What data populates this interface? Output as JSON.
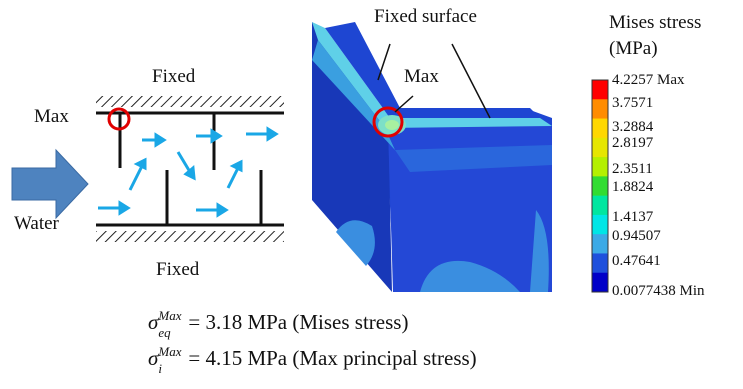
{
  "schematic": {
    "label_fixed_top": "Fixed",
    "label_fixed_bottom": "Fixed",
    "label_max": "Max",
    "label_water": "Water"
  },
  "model": {
    "label_fixed_surface": "Fixed surface",
    "label_max": "Max"
  },
  "legend": {
    "title_line1": "Mises stress",
    "title_line2": "(MPa)",
    "ticks": [
      "4.2257",
      "3.7571",
      "3.2884",
      "2.8197",
      "2.3511",
      "1.8824",
      "1.4137",
      "0.94507",
      "0.47641",
      "0.0077438"
    ],
    "max_label": "Max",
    "min_label": "Min",
    "colors": [
      "#ff0000",
      "#ff8c00",
      "#ffd700",
      "#e6e600",
      "#b4f000",
      "#32dc32",
      "#00e6a0",
      "#00e6e6",
      "#3caae6",
      "#1e50dc",
      "#0000c8"
    ]
  },
  "equations": {
    "eq1_symbol": "σ",
    "eq1_sup": "Max",
    "eq1_sub": "eq",
    "eq1_rest": "= 3.18 MPa (Mises stress)",
    "eq2_symbol": "σ",
    "eq2_sup": "Max",
    "eq2_sub": "i",
    "eq2_rest": "= 4.15 MPa (Max principal stress)"
  }
}
